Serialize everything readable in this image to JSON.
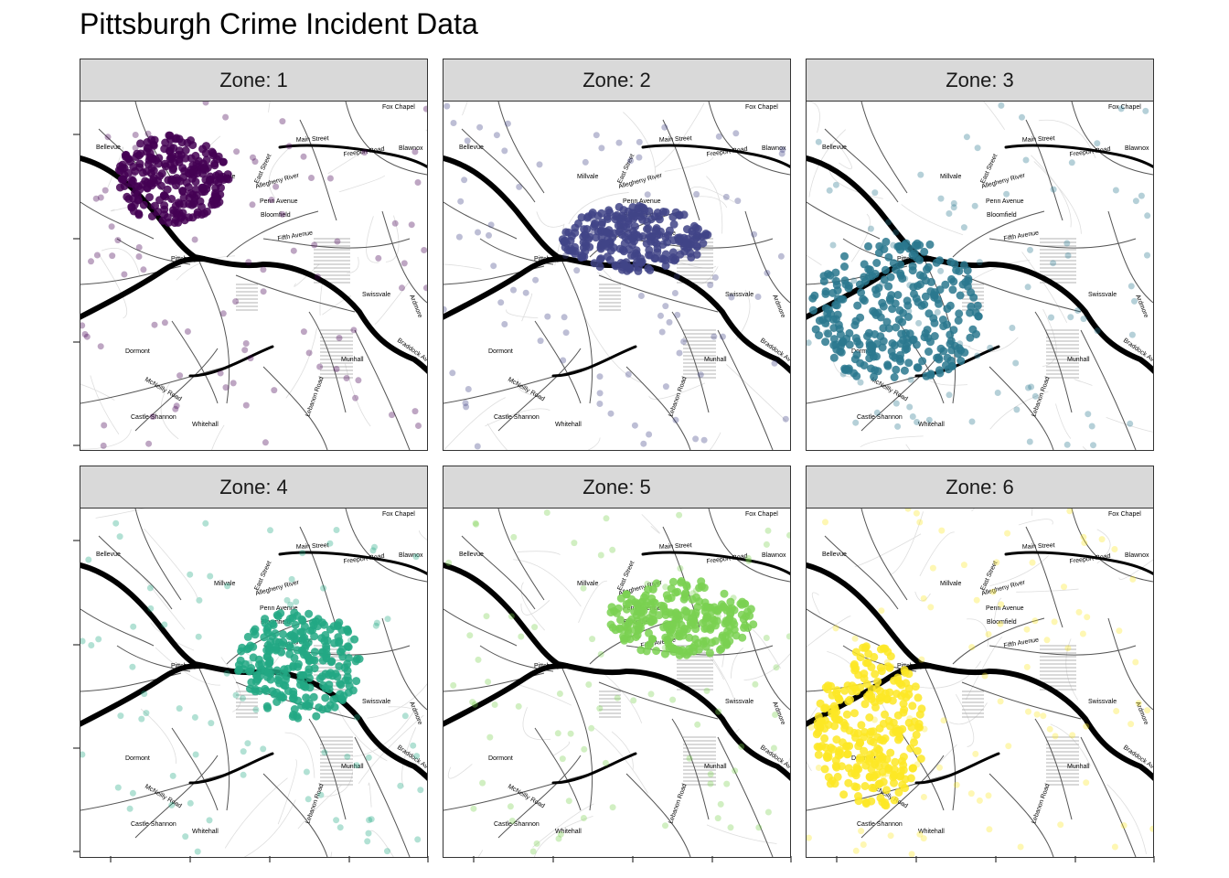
{
  "title": "Pittsburgh Crime Incident Data",
  "strip_prefix": "Zone: ",
  "panels": [
    {
      "zone": "1",
      "color": "#440154",
      "label": "Zone: 1"
    },
    {
      "zone": "2",
      "color": "#414487",
      "label": "Zone: 2"
    },
    {
      "zone": "3",
      "color": "#2a788e",
      "label": "Zone: 3"
    },
    {
      "zone": "4",
      "color": "#22a884",
      "label": "Zone: 4"
    },
    {
      "zone": "5",
      "color": "#7ad151",
      "label": "Zone: 5"
    },
    {
      "zone": "6",
      "color": "#fde725",
      "label": "Zone: 6"
    }
  ],
  "map_labels": {
    "fox_chapel": "Fox Chapel",
    "freeport_road": "Freeport Road",
    "bellevue": "Bellevue",
    "blawnox": "Blawnox",
    "main_street": "Main Street",
    "millvale": "Millvale",
    "allegheny_river": "Allegheny River",
    "penn_avenue": "Penn Avenue",
    "bloomfield": "Bloomfield",
    "fifth_avenue": "Fifth Avenue",
    "pittsburgh": "Pittsburgh",
    "swissvale": "Swissvale",
    "ardmore": "Ardmore",
    "braddock": "Braddock Ave",
    "dormont": "Dormont",
    "munhall": "Munhall",
    "mcneilly_road": "McNeilly Road",
    "castle_shannon": "Castle Shannon",
    "whitehall": "Whitehall",
    "lebanon_road": "Lebanon Road",
    "east_street": "East Street"
  }
}
